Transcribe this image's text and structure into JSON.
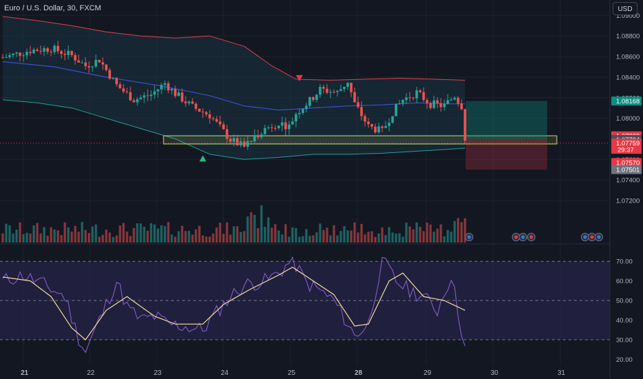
{
  "header": {
    "title": "Euro / U.S. Dollar, 30, FXCM",
    "currency_button": "USD"
  },
  "colors": {
    "background": "#131722",
    "up": "#26a69a",
    "down": "#ef5350",
    "bb_upper": "#e0404c",
    "bb_lower": "#2a9d8f",
    "ma": "#3a4fd0",
    "rsi_line": "#7e57c2",
    "rsi_ma": "#f5dfa0",
    "zone": "#c8e06a"
  },
  "price_axis": {
    "ticks": [
      "1.09000",
      "1.08800",
      "1.08600",
      "1.08400",
      "1.08200",
      "1.08000",
      "1.07600",
      "1.07400",
      "1.07200"
    ],
    "badges": [
      {
        "label": "1.08168",
        "price": 1.08168,
        "color": "#0d8d7f"
      },
      {
        "label": "1.07829",
        "price": 1.07829,
        "color": "#e53945"
      },
      {
        "label": "1.07794",
        "price": 1.07794,
        "color": "#4a5060"
      },
      {
        "label": "1.07759",
        "price": 1.07759,
        "color": "#e53945",
        "sub": "29:37"
      },
      {
        "label": "1.07570",
        "price": 1.0757,
        "color": "#e53945"
      },
      {
        "label": "1.07501",
        "price": 1.07501,
        "color": "#6e7380"
      }
    ]
  },
  "rsi_axis": {
    "ticks": [
      "70.00",
      "60.00",
      "50.00",
      "40.00",
      "30.00",
      "20.00"
    ]
  },
  "time_axis": {
    "labels": [
      "21",
      "22",
      "23",
      "24",
      "25",
      "28",
      "29",
      "30",
      "31"
    ],
    "bold": [
      "21",
      "28"
    ]
  },
  "chart_data": [
    {
      "type": "candlestick",
      "title": "Euro / U.S. Dollar, 30, FXCM",
      "ylim": [
        1.0714,
        1.0915
      ],
      "x_days": [
        "21",
        "22",
        "23",
        "24",
        "25",
        "28",
        "29",
        "30",
        "31"
      ],
      "price_path": [
        [
          0,
          1.0859
        ],
        [
          8,
          1.0866
        ],
        [
          14,
          1.0868
        ],
        [
          20,
          1.0861
        ],
        [
          24,
          1.0851
        ],
        [
          28,
          1.0857
        ],
        [
          33,
          1.0832
        ],
        [
          38,
          1.0818
        ],
        [
          43,
          1.0823
        ],
        [
          47,
          1.0834
        ],
        [
          50,
          1.0824
        ],
        [
          55,
          1.0811
        ],
        [
          60,
          1.0803
        ],
        [
          63,
          1.0791
        ],
        [
          66,
          1.0779
        ],
        [
          70,
          1.0772
        ],
        [
          75,
          1.0788
        ],
        [
          80,
          1.0796
        ],
        [
          83,
          1.0792
        ],
        [
          85,
          1.0805
        ],
        [
          89,
          1.0817
        ],
        [
          92,
          1.0828
        ],
        [
          97,
          1.0825
        ],
        [
          100,
          1.0836
        ],
        [
          102,
          1.0814
        ],
        [
          106,
          1.0792
        ],
        [
          110,
          1.0787
        ],
        [
          113,
          1.0806
        ],
        [
          116,
          1.0818
        ],
        [
          120,
          1.0825
        ],
        [
          124,
          1.0814
        ],
        [
          128,
          1.0812
        ],
        [
          131,
          1.0822
        ],
        [
          133,
          1.0812
        ],
        [
          134,
          1.0781
        ]
      ],
      "bollinger": {
        "upper": [
          [
            0,
            1.0899
          ],
          [
            10,
            1.0895
          ],
          [
            20,
            1.089
          ],
          [
            30,
            1.0884
          ],
          [
            40,
            1.088
          ],
          [
            50,
            1.0878
          ],
          [
            60,
            1.088
          ],
          [
            70,
            1.087
          ],
          [
            78,
            1.0851
          ],
          [
            85,
            1.0838
          ],
          [
            95,
            1.0837
          ],
          [
            105,
            1.0838
          ],
          [
            115,
            1.0839
          ],
          [
            125,
            1.0838
          ],
          [
            134,
            1.0837
          ]
        ],
        "lower": [
          [
            0,
            1.0818
          ],
          [
            10,
            1.0815
          ],
          [
            20,
            1.081
          ],
          [
            30,
            1.08
          ],
          [
            40,
            1.079
          ],
          [
            50,
            1.078
          ],
          [
            60,
            1.0765
          ],
          [
            70,
            1.076
          ],
          [
            80,
            1.0762
          ],
          [
            90,
            1.0765
          ],
          [
            100,
            1.0765
          ],
          [
            110,
            1.0766
          ],
          [
            120,
            1.0768
          ],
          [
            130,
            1.077
          ],
          [
            134,
            1.0771
          ]
        ]
      },
      "moving_average": [
        [
          0,
          1.0855
        ],
        [
          15,
          1.085
        ],
        [
          30,
          1.084
        ],
        [
          45,
          1.0832
        ],
        [
          60,
          1.0822
        ],
        [
          70,
          1.0812
        ],
        [
          80,
          1.0808
        ],
        [
          90,
          1.081
        ],
        [
          100,
          1.0812
        ],
        [
          110,
          1.0813
        ],
        [
          120,
          1.0815
        ],
        [
          130,
          1.0814
        ],
        [
          134,
          1.0814
        ]
      ],
      "zone": [
        1.0775,
        1.0783
      ],
      "signals": [
        {
          "type": "buy",
          "x": 58,
          "price": 1.076
        },
        {
          "type": "sell",
          "x": 86,
          "price": 1.084
        }
      ],
      "position": {
        "entry": 1.07794,
        "target": 1.08168,
        "stop": 1.07501
      }
    },
    {
      "type": "bar",
      "title": "",
      "series": [
        {
          "name": "",
          "values": "volume histogram per candle"
        }
      ],
      "note": ""
    },
    {
      "type": "line",
      "title": "",
      "ylim": [
        17,
        75
      ],
      "levels": [
        70,
        50,
        30
      ],
      "rsi_path": [
        [
          0,
          60
        ],
        [
          6,
          63
        ],
        [
          12,
          58
        ],
        [
          18,
          52
        ],
        [
          22,
          31
        ],
        [
          24,
          24
        ],
        [
          28,
          40
        ],
        [
          33,
          60
        ],
        [
          36,
          47
        ],
        [
          40,
          40
        ],
        [
          44,
          42
        ],
        [
          48,
          38
        ],
        [
          52,
          37
        ],
        [
          58,
          35
        ],
        [
          62,
          44
        ],
        [
          66,
          52
        ],
        [
          70,
          58
        ],
        [
          76,
          60
        ],
        [
          80,
          64
        ],
        [
          84,
          71
        ],
        [
          88,
          59
        ],
        [
          92,
          55
        ],
        [
          96,
          50
        ],
        [
          100,
          38
        ],
        [
          102,
          32
        ],
        [
          106,
          38
        ],
        [
          110,
          71
        ],
        [
          114,
          60
        ],
        [
          118,
          55
        ],
        [
          122,
          52
        ],
        [
          126,
          45
        ],
        [
          130,
          63
        ],
        [
          134,
          26
        ]
      ],
      "rsi_ma_path": [
        [
          0,
          62
        ],
        [
          8,
          60
        ],
        [
          14,
          52
        ],
        [
          20,
          36
        ],
        [
          24,
          30
        ],
        [
          30,
          45
        ],
        [
          36,
          52
        ],
        [
          44,
          42
        ],
        [
          50,
          38
        ],
        [
          58,
          38
        ],
        [
          64,
          48
        ],
        [
          72,
          56
        ],
        [
          80,
          63
        ],
        [
          84,
          67
        ],
        [
          90,
          60
        ],
        [
          96,
          53
        ],
        [
          102,
          37
        ],
        [
          106,
          38
        ],
        [
          112,
          60
        ],
        [
          116,
          64
        ],
        [
          122,
          52
        ],
        [
          128,
          50
        ],
        [
          134,
          45
        ]
      ]
    }
  ]
}
